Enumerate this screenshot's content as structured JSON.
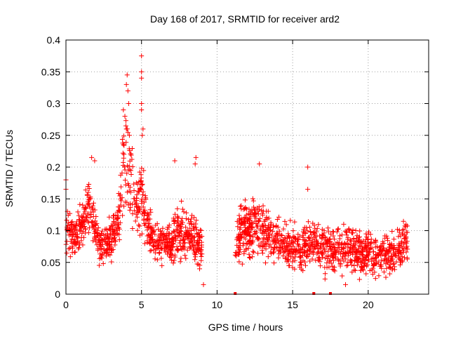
{
  "chart_data": {
    "type": "scatter",
    "title": "Day 168 of 2017, SRMTID for receiver ard2",
    "xlabel": "GPS time / hours",
    "ylabel": "SRMTID / TECUs",
    "xlim": [
      0,
      24
    ],
    "ylim": [
      0,
      0.4
    ],
    "xticks": [
      0,
      5,
      10,
      15,
      20
    ],
    "xtick_labels": [
      "0",
      "5",
      "10",
      "15",
      "20"
    ],
    "yticks": [
      0,
      0.05,
      0.1,
      0.15,
      0.2,
      0.25,
      0.3,
      0.35,
      0.4
    ],
    "ytick_labels": [
      "0",
      "0.05",
      "0.1",
      "0.15",
      "0.2",
      "0.25",
      "0.3",
      "0.35",
      "0.4"
    ],
    "grid": true,
    "marker": "+",
    "color": "#ff0000",
    "series": [
      {
        "name": "SRMTID",
        "segments": [
          {
            "x": [
              0.0,
              0.5,
              1.0,
              1.5,
              2.0,
              2.5,
              3.0,
              3.5,
              3.8,
              4.2,
              4.6,
              5.0,
              5.5,
              6.0,
              6.5,
              7.0,
              7.5,
              8.0,
              8.5,
              9.0
            ],
            "y": [
              0.1,
              0.09,
              0.1,
              0.14,
              0.09,
              0.07,
              0.09,
              0.11,
              0.2,
              0.2,
              0.14,
              0.15,
              0.1,
              0.08,
              0.08,
              0.08,
              0.1,
              0.09,
              0.09,
              0.07
            ],
            "spread": [
              0.03,
              0.03,
              0.03,
              0.04,
              0.03,
              0.03,
              0.03,
              0.04,
              0.07,
              0.07,
              0.04,
              0.05,
              0.03,
              0.03,
              0.03,
              0.03,
              0.04,
              0.03,
              0.03,
              0.03
            ]
          },
          {
            "x": [
              11.2,
              11.5,
              12.0,
              12.5,
              13.0,
              13.5,
              14.0,
              14.5,
              15.0,
              15.5,
              16.0,
              16.5,
              17.0,
              17.5,
              18.0,
              18.5,
              19.0,
              19.5,
              20.0,
              20.5,
              21.0,
              21.5,
              22.0,
              22.6
            ],
            "y": [
              0.08,
              0.1,
              0.1,
              0.11,
              0.1,
              0.09,
              0.08,
              0.08,
              0.07,
              0.07,
              0.08,
              0.08,
              0.07,
              0.07,
              0.07,
              0.07,
              0.07,
              0.06,
              0.07,
              0.06,
              0.06,
              0.06,
              0.07,
              0.08
            ],
            "spread": [
              0.03,
              0.04,
              0.04,
              0.04,
              0.04,
              0.03,
              0.03,
              0.03,
              0.03,
              0.03,
              0.03,
              0.03,
              0.03,
              0.03,
              0.03,
              0.03,
              0.03,
              0.03,
              0.03,
              0.03,
              0.03,
              0.03,
              0.03,
              0.03
            ]
          }
        ],
        "highlights": [
          {
            "x": 4.05,
            "y": 0.345
          },
          {
            "x": 4.0,
            "y": 0.33
          },
          {
            "x": 4.1,
            "y": 0.32
          },
          {
            "x": 5.0,
            "y": 0.375
          },
          {
            "x": 5.0,
            "y": 0.35
          },
          {
            "x": 5.0,
            "y": 0.34
          },
          {
            "x": 3.8,
            "y": 0.29
          },
          {
            "x": 3.9,
            "y": 0.28
          },
          {
            "x": 4.15,
            "y": 0.3
          },
          {
            "x": 5.0,
            "y": 0.3
          },
          {
            "x": 5.0,
            "y": 0.29
          },
          {
            "x": 4.0,
            "y": 0.26
          },
          {
            "x": 4.2,
            "y": 0.25
          },
          {
            "x": 5.1,
            "y": 0.26
          },
          {
            "x": 5.05,
            "y": 0.25
          },
          {
            "x": 8.6,
            "y": 0.215
          },
          {
            "x": 8.55,
            "y": 0.205
          },
          {
            "x": 7.2,
            "y": 0.21
          },
          {
            "x": 1.7,
            "y": 0.215
          },
          {
            "x": 1.9,
            "y": 0.21
          },
          {
            "x": 12.8,
            "y": 0.205
          },
          {
            "x": 16.0,
            "y": 0.2
          },
          {
            "x": 16.0,
            "y": 0.165
          },
          {
            "x": 9.1,
            "y": 0.015
          },
          {
            "x": 18.5,
            "y": 0.015
          },
          {
            "x": 0.0,
            "y": 0.18
          },
          {
            "x": 0.0,
            "y": 0.165
          }
        ],
        "zero_markers": [
          11.2,
          16.4,
          17.5
        ]
      }
    ]
  }
}
